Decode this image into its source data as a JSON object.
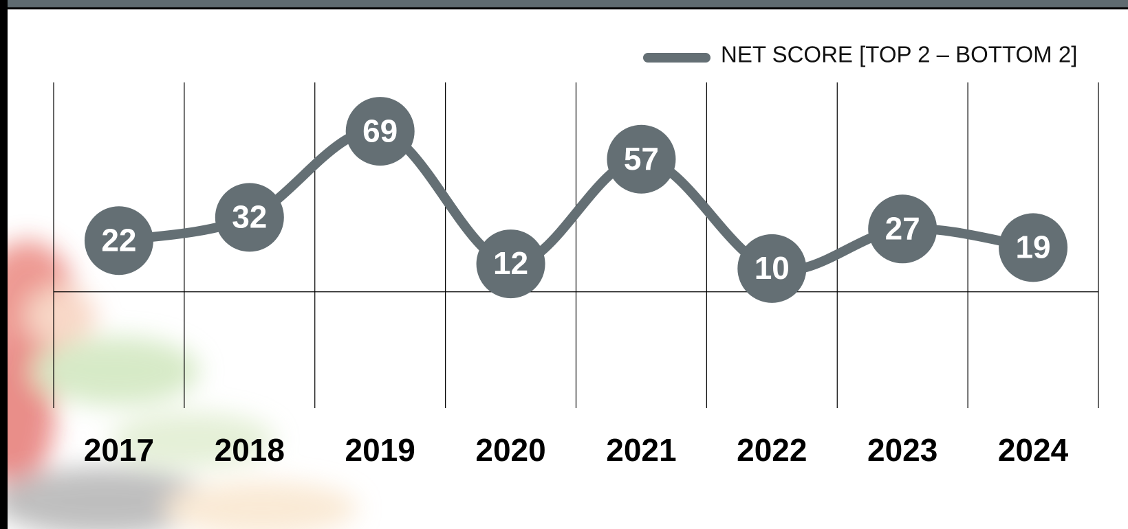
{
  "chart_data": {
    "type": "line",
    "categories": [
      "2017",
      "2018",
      "2019",
      "2020",
      "2021",
      "2022",
      "2023",
      "2024"
    ],
    "series": [
      {
        "name": "NET SCORE [TOP 2 – BOTTOM 2]",
        "color": "#646f74",
        "values": [
          22,
          32,
          69,
          12,
          57,
          10,
          27,
          19
        ]
      }
    ],
    "ylim": [
      -50,
      90
    ],
    "legend": "top-right"
  }
}
